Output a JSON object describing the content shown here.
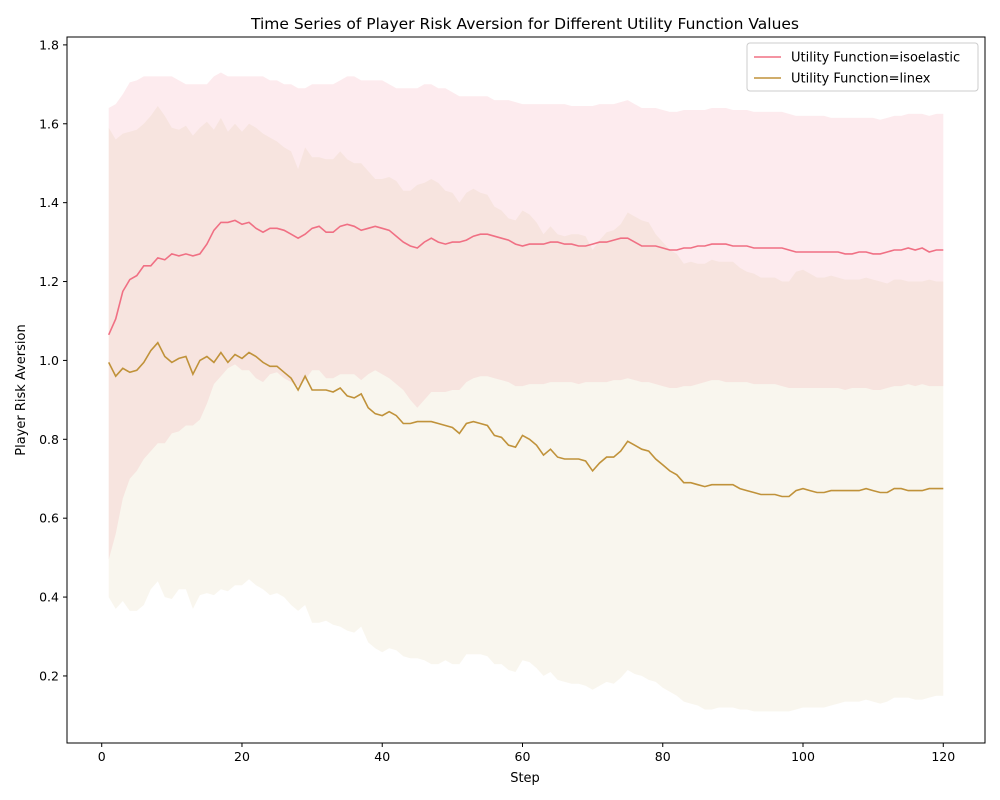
{
  "chart_data": {
    "type": "line",
    "title": "Time Series of Player Risk Aversion for Different Utility Function Values",
    "xlabel": "Step",
    "ylabel": "Player Risk Aversion",
    "xlim": [
      -4.95,
      125.95
    ],
    "ylim": [
      0.03,
      1.82
    ],
    "xticks": [
      0,
      20,
      40,
      60,
      80,
      100,
      120
    ],
    "xtick_labels": [
      "0",
      "20",
      "40",
      "60",
      "80",
      "100",
      "120"
    ],
    "yticks": [
      0.2,
      0.4,
      0.6,
      0.8,
      1.0,
      1.2,
      1.4,
      1.6,
      1.8
    ],
    "ytick_labels": [
      "0.2",
      "0.4",
      "0.6",
      "0.8",
      "1.0",
      "1.2",
      "1.4",
      "1.6",
      "1.8"
    ],
    "grid": false,
    "legend_position": "top-right",
    "series": [
      {
        "name": "Utility Function=isoelastic",
        "color": "#f07084",
        "band_color": "#f07084",
        "x": [
          1,
          2,
          3,
          4,
          5,
          6,
          7,
          8,
          9,
          10,
          11,
          12,
          13,
          14,
          15,
          16,
          17,
          18,
          19,
          20,
          21,
          22,
          23,
          24,
          25,
          26,
          27,
          28,
          29,
          30,
          31,
          32,
          33,
          34,
          35,
          36,
          37,
          38,
          39,
          40,
          41,
          42,
          43,
          44,
          45,
          46,
          47,
          48,
          49,
          50,
          51,
          52,
          53,
          54,
          55,
          56,
          57,
          58,
          59,
          60,
          61,
          62,
          63,
          64,
          65,
          66,
          67,
          68,
          69,
          70,
          71,
          72,
          73,
          74,
          75,
          76,
          77,
          78,
          79,
          80,
          81,
          82,
          83,
          84,
          85,
          86,
          87,
          88,
          89,
          90,
          91,
          92,
          93,
          94,
          95,
          96,
          97,
          98,
          99,
          100,
          101,
          102,
          103,
          104,
          105,
          106,
          107,
          108,
          109,
          110,
          111,
          112,
          113,
          114,
          115,
          116,
          117,
          118,
          119,
          120
        ],
        "values": [
          1.065,
          1.105,
          1.175,
          1.205,
          1.215,
          1.24,
          1.24,
          1.26,
          1.255,
          1.27,
          1.265,
          1.27,
          1.265,
          1.27,
          1.295,
          1.33,
          1.35,
          1.35,
          1.355,
          1.345,
          1.35,
          1.335,
          1.325,
          1.335,
          1.335,
          1.33,
          1.32,
          1.31,
          1.32,
          1.335,
          1.34,
          1.325,
          1.325,
          1.34,
          1.345,
          1.34,
          1.33,
          1.335,
          1.34,
          1.335,
          1.33,
          1.315,
          1.3,
          1.29,
          1.285,
          1.3,
          1.31,
          1.3,
          1.295,
          1.3,
          1.3,
          1.305,
          1.315,
          1.32,
          1.32,
          1.315,
          1.31,
          1.305,
          1.295,
          1.29,
          1.295,
          1.295,
          1.295,
          1.3,
          1.3,
          1.295,
          1.295,
          1.29,
          1.29,
          1.295,
          1.3,
          1.3,
          1.305,
          1.31,
          1.31,
          1.3,
          1.29,
          1.29,
          1.29,
          1.285,
          1.28,
          1.28,
          1.285,
          1.285,
          1.29,
          1.29,
          1.295,
          1.295,
          1.295,
          1.29,
          1.29,
          1.29,
          1.285,
          1.285,
          1.285,
          1.285,
          1.285,
          1.28,
          1.275,
          1.275,
          1.275,
          1.275,
          1.275,
          1.275,
          1.275,
          1.27,
          1.27,
          1.275,
          1.275,
          1.27,
          1.27,
          1.275,
          1.28,
          1.28,
          1.285,
          1.28,
          1.285,
          1.275,
          1.28,
          1.28
        ],
        "lower": [
          0.495,
          0.56,
          0.65,
          0.7,
          0.72,
          0.75,
          0.77,
          0.79,
          0.79,
          0.815,
          0.82,
          0.835,
          0.835,
          0.85,
          0.89,
          0.94,
          0.96,
          0.98,
          0.99,
          0.975,
          0.975,
          0.955,
          0.945,
          0.965,
          0.97,
          0.955,
          0.945,
          0.935,
          0.95,
          0.975,
          0.975,
          0.955,
          0.955,
          0.965,
          0.965,
          0.965,
          0.95,
          0.965,
          0.975,
          0.965,
          0.955,
          0.94,
          0.925,
          0.9,
          0.88,
          0.9,
          0.92,
          0.92,
          0.92,
          0.925,
          0.925,
          0.945,
          0.955,
          0.96,
          0.96,
          0.955,
          0.95,
          0.945,
          0.935,
          0.935,
          0.94,
          0.94,
          0.94,
          0.945,
          0.945,
          0.945,
          0.945,
          0.94,
          0.945,
          0.945,
          0.945,
          0.945,
          0.95,
          0.95,
          0.955,
          0.95,
          0.945,
          0.945,
          0.94,
          0.935,
          0.93,
          0.93,
          0.935,
          0.935,
          0.94,
          0.945,
          0.95,
          0.95,
          0.945,
          0.945,
          0.945,
          0.945,
          0.94,
          0.94,
          0.94,
          0.94,
          0.935,
          0.93,
          0.93,
          0.93,
          0.93,
          0.93,
          0.93,
          0.93,
          0.93,
          0.925,
          0.93,
          0.93,
          0.93,
          0.925,
          0.925,
          0.93,
          0.935,
          0.935,
          0.94,
          0.935,
          0.94,
          0.935,
          0.935,
          0.935
        ],
        "upper": [
          1.64,
          1.65,
          1.675,
          1.705,
          1.71,
          1.72,
          1.72,
          1.72,
          1.72,
          1.72,
          1.71,
          1.7,
          1.7,
          1.7,
          1.7,
          1.72,
          1.73,
          1.72,
          1.72,
          1.72,
          1.72,
          1.72,
          1.72,
          1.71,
          1.71,
          1.7,
          1.7,
          1.69,
          1.69,
          1.7,
          1.7,
          1.7,
          1.7,
          1.71,
          1.72,
          1.72,
          1.71,
          1.71,
          1.71,
          1.71,
          1.7,
          1.69,
          1.69,
          1.69,
          1.69,
          1.7,
          1.7,
          1.69,
          1.69,
          1.68,
          1.67,
          1.67,
          1.67,
          1.67,
          1.67,
          1.66,
          1.66,
          1.66,
          1.655,
          1.65,
          1.65,
          1.65,
          1.65,
          1.65,
          1.65,
          1.65,
          1.645,
          1.645,
          1.645,
          1.645,
          1.65,
          1.65,
          1.65,
          1.655,
          1.66,
          1.65,
          1.64,
          1.64,
          1.64,
          1.635,
          1.63,
          1.63,
          1.635,
          1.635,
          1.635,
          1.635,
          1.64,
          1.64,
          1.64,
          1.635,
          1.635,
          1.635,
          1.63,
          1.63,
          1.63,
          1.63,
          1.63,
          1.625,
          1.62,
          1.62,
          1.62,
          1.62,
          1.62,
          1.615,
          1.615,
          1.615,
          1.615,
          1.615,
          1.615,
          1.615,
          1.61,
          1.615,
          1.62,
          1.62,
          1.625,
          1.625,
          1.625,
          1.62,
          1.625,
          1.625
        ]
      },
      {
        "name": "Utility Function=linex",
        "color": "#c0923a",
        "band_color": "#d8c08a",
        "x": [
          1,
          2,
          3,
          4,
          5,
          6,
          7,
          8,
          9,
          10,
          11,
          12,
          13,
          14,
          15,
          16,
          17,
          18,
          19,
          20,
          21,
          22,
          23,
          24,
          25,
          26,
          27,
          28,
          29,
          30,
          31,
          32,
          33,
          34,
          35,
          36,
          37,
          38,
          39,
          40,
          41,
          42,
          43,
          44,
          45,
          46,
          47,
          48,
          49,
          50,
          51,
          52,
          53,
          54,
          55,
          56,
          57,
          58,
          59,
          60,
          61,
          62,
          63,
          64,
          65,
          66,
          67,
          68,
          69,
          70,
          71,
          72,
          73,
          74,
          75,
          76,
          77,
          78,
          79,
          80,
          81,
          82,
          83,
          84,
          85,
          86,
          87,
          88,
          89,
          90,
          91,
          92,
          93,
          94,
          95,
          96,
          97,
          98,
          99,
          100,
          101,
          102,
          103,
          104,
          105,
          106,
          107,
          108,
          109,
          110,
          111,
          112,
          113,
          114,
          115,
          116,
          117,
          118,
          119,
          120
        ],
        "values": [
          0.995,
          0.96,
          0.98,
          0.97,
          0.975,
          0.995,
          1.025,
          1.045,
          1.01,
          0.995,
          1.005,
          1.01,
          0.965,
          1.0,
          1.01,
          0.995,
          1.02,
          0.995,
          1.015,
          1.005,
          1.02,
          1.01,
          0.995,
          0.985,
          0.985,
          0.97,
          0.955,
          0.925,
          0.96,
          0.925,
          0.925,
          0.925,
          0.92,
          0.93,
          0.91,
          0.905,
          0.915,
          0.88,
          0.865,
          0.86,
          0.87,
          0.86,
          0.84,
          0.84,
          0.845,
          0.845,
          0.845,
          0.84,
          0.835,
          0.83,
          0.815,
          0.84,
          0.845,
          0.84,
          0.835,
          0.81,
          0.805,
          0.785,
          0.78,
          0.81,
          0.8,
          0.785,
          0.76,
          0.775,
          0.755,
          0.75,
          0.75,
          0.75,
          0.745,
          0.72,
          0.74,
          0.755,
          0.755,
          0.77,
          0.795,
          0.785,
          0.775,
          0.77,
          0.75,
          0.735,
          0.72,
          0.71,
          0.69,
          0.69,
          0.685,
          0.68,
          0.685,
          0.685,
          0.685,
          0.685,
          0.675,
          0.67,
          0.665,
          0.66,
          0.66,
          0.66,
          0.655,
          0.655,
          0.67,
          0.675,
          0.67,
          0.665,
          0.665,
          0.67,
          0.67,
          0.67,
          0.67,
          0.67,
          0.675,
          0.67,
          0.665,
          0.665,
          0.675,
          0.675,
          0.67,
          0.67,
          0.67,
          0.675,
          0.675,
          0.675
        ],
        "lower": [
          0.4,
          0.37,
          0.39,
          0.365,
          0.365,
          0.38,
          0.42,
          0.44,
          0.4,
          0.395,
          0.42,
          0.42,
          0.37,
          0.405,
          0.41,
          0.405,
          0.42,
          0.415,
          0.43,
          0.43,
          0.445,
          0.43,
          0.42,
          0.405,
          0.41,
          0.4,
          0.38,
          0.365,
          0.38,
          0.335,
          0.335,
          0.34,
          0.33,
          0.325,
          0.315,
          0.31,
          0.325,
          0.285,
          0.27,
          0.26,
          0.27,
          0.265,
          0.25,
          0.245,
          0.245,
          0.24,
          0.23,
          0.23,
          0.24,
          0.23,
          0.23,
          0.255,
          0.255,
          0.255,
          0.25,
          0.23,
          0.23,
          0.215,
          0.21,
          0.24,
          0.235,
          0.22,
          0.2,
          0.21,
          0.19,
          0.185,
          0.18,
          0.18,
          0.175,
          0.165,
          0.175,
          0.185,
          0.18,
          0.195,
          0.215,
          0.205,
          0.2,
          0.19,
          0.185,
          0.17,
          0.16,
          0.15,
          0.135,
          0.13,
          0.125,
          0.115,
          0.115,
          0.12,
          0.12,
          0.12,
          0.115,
          0.115,
          0.11,
          0.11,
          0.11,
          0.11,
          0.11,
          0.11,
          0.115,
          0.12,
          0.12,
          0.12,
          0.12,
          0.125,
          0.13,
          0.135,
          0.135,
          0.135,
          0.14,
          0.135,
          0.13,
          0.135,
          0.145,
          0.145,
          0.145,
          0.14,
          0.14,
          0.145,
          0.15,
          0.15
        ],
        "upper": [
          1.59,
          1.56,
          1.575,
          1.58,
          1.585,
          1.6,
          1.62,
          1.645,
          1.62,
          1.59,
          1.585,
          1.595,
          1.57,
          1.59,
          1.605,
          1.585,
          1.615,
          1.58,
          1.6,
          1.58,
          1.6,
          1.59,
          1.575,
          1.565,
          1.555,
          1.54,
          1.53,
          1.485,
          1.54,
          1.515,
          1.515,
          1.51,
          1.51,
          1.53,
          1.51,
          1.5,
          1.5,
          1.48,
          1.46,
          1.46,
          1.465,
          1.455,
          1.43,
          1.43,
          1.445,
          1.45,
          1.46,
          1.45,
          1.43,
          1.425,
          1.4,
          1.425,
          1.435,
          1.425,
          1.42,
          1.39,
          1.38,
          1.36,
          1.355,
          1.38,
          1.37,
          1.35,
          1.32,
          1.34,
          1.32,
          1.315,
          1.32,
          1.32,
          1.315,
          1.28,
          1.305,
          1.325,
          1.33,
          1.345,
          1.375,
          1.365,
          1.355,
          1.35,
          1.32,
          1.3,
          1.28,
          1.27,
          1.245,
          1.25,
          1.245,
          1.245,
          1.255,
          1.25,
          1.25,
          1.25,
          1.235,
          1.225,
          1.22,
          1.21,
          1.21,
          1.21,
          1.2,
          1.2,
          1.225,
          1.23,
          1.22,
          1.21,
          1.21,
          1.215,
          1.21,
          1.205,
          1.205,
          1.205,
          1.21,
          1.205,
          1.2,
          1.195,
          1.205,
          1.205,
          1.2,
          1.2,
          1.2,
          1.205,
          1.2,
          1.2
        ]
      }
    ]
  }
}
